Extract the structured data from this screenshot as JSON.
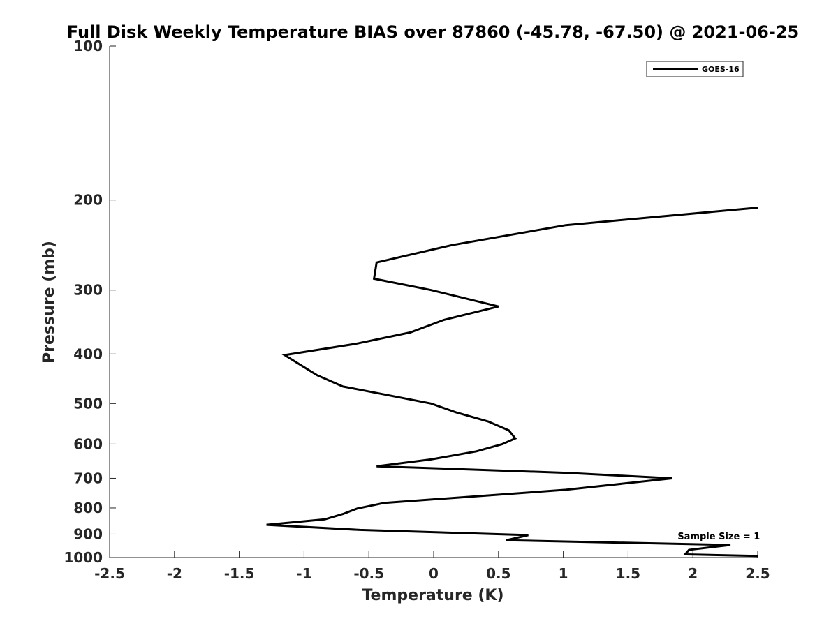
{
  "chart_data": {
    "type": "line",
    "title": "Full Disk Weekly Temperature BIAS over 87860 (-45.78, -67.50) @ 2021-06-25",
    "xlabel": "Temperature (K)",
    "ylabel": "Pressure (mb)",
    "xlim": [
      -2.5,
      2.5
    ],
    "ylim": [
      100,
      1000
    ],
    "y_scale": "log",
    "y_reversed": true,
    "x_ticks": [
      -2.5,
      -2,
      -1.5,
      -1,
      -0.5,
      0,
      0.5,
      1,
      1.5,
      2,
      2.5
    ],
    "x_tick_labels": [
      "-2.5",
      "-2",
      "-1.5",
      "-1",
      "-0.5",
      "0",
      "0.5",
      "1",
      "1.5",
      "2",
      "2.5"
    ],
    "y_ticks": [
      100,
      200,
      300,
      400,
      500,
      600,
      700,
      800,
      900,
      1000
    ],
    "y_tick_labels": [
      "100",
      "200",
      "300",
      "400",
      "500",
      "600",
      "700",
      "800",
      "900",
      "1000"
    ],
    "grid": false,
    "legend_position": "top-right",
    "series": [
      {
        "name": "GOES-16",
        "color": "#000000",
        "points": [
          {
            "x": 2.5,
            "y": 207
          },
          {
            "x": 1.02,
            "y": 224
          },
          {
            "x": 0.14,
            "y": 245
          },
          {
            "x": -0.44,
            "y": 265
          },
          {
            "x": -0.46,
            "y": 285
          },
          {
            "x": -0.02,
            "y": 300
          },
          {
            "x": 0.5,
            "y": 323
          },
          {
            "x": 0.08,
            "y": 343
          },
          {
            "x": -0.18,
            "y": 363
          },
          {
            "x": -0.6,
            "y": 382
          },
          {
            "x": -1.15,
            "y": 402
          },
          {
            "x": -0.9,
            "y": 440
          },
          {
            "x": -0.7,
            "y": 463
          },
          {
            "x": -0.38,
            "y": 480
          },
          {
            "x": -0.02,
            "y": 500
          },
          {
            "x": 0.17,
            "y": 520
          },
          {
            "x": 0.42,
            "y": 542
          },
          {
            "x": 0.58,
            "y": 564
          },
          {
            "x": 0.63,
            "y": 585
          },
          {
            "x": 0.53,
            "y": 600
          },
          {
            "x": 0.33,
            "y": 620
          },
          {
            "x": -0.02,
            "y": 643
          },
          {
            "x": -0.44,
            "y": 663
          },
          {
            "x": 1.02,
            "y": 683
          },
          {
            "x": 1.84,
            "y": 700
          },
          {
            "x": 1.02,
            "y": 737
          },
          {
            "x": -0.38,
            "y": 782
          },
          {
            "x": -0.59,
            "y": 802
          },
          {
            "x": -0.7,
            "y": 822
          },
          {
            "x": -0.84,
            "y": 842
          },
          {
            "x": -1.29,
            "y": 863
          },
          {
            "x": -0.57,
            "y": 883
          },
          {
            "x": 0.73,
            "y": 904
          },
          {
            "x": 0.56,
            "y": 925
          },
          {
            "x": 2.29,
            "y": 945
          },
          {
            "x": 1.97,
            "y": 966
          },
          {
            "x": 1.94,
            "y": 986
          },
          {
            "x": 2.5,
            "y": 993
          }
        ]
      }
    ],
    "annotations": [
      {
        "text": "Sample Size = 1",
        "x": 2.2,
        "y": 907
      }
    ]
  }
}
